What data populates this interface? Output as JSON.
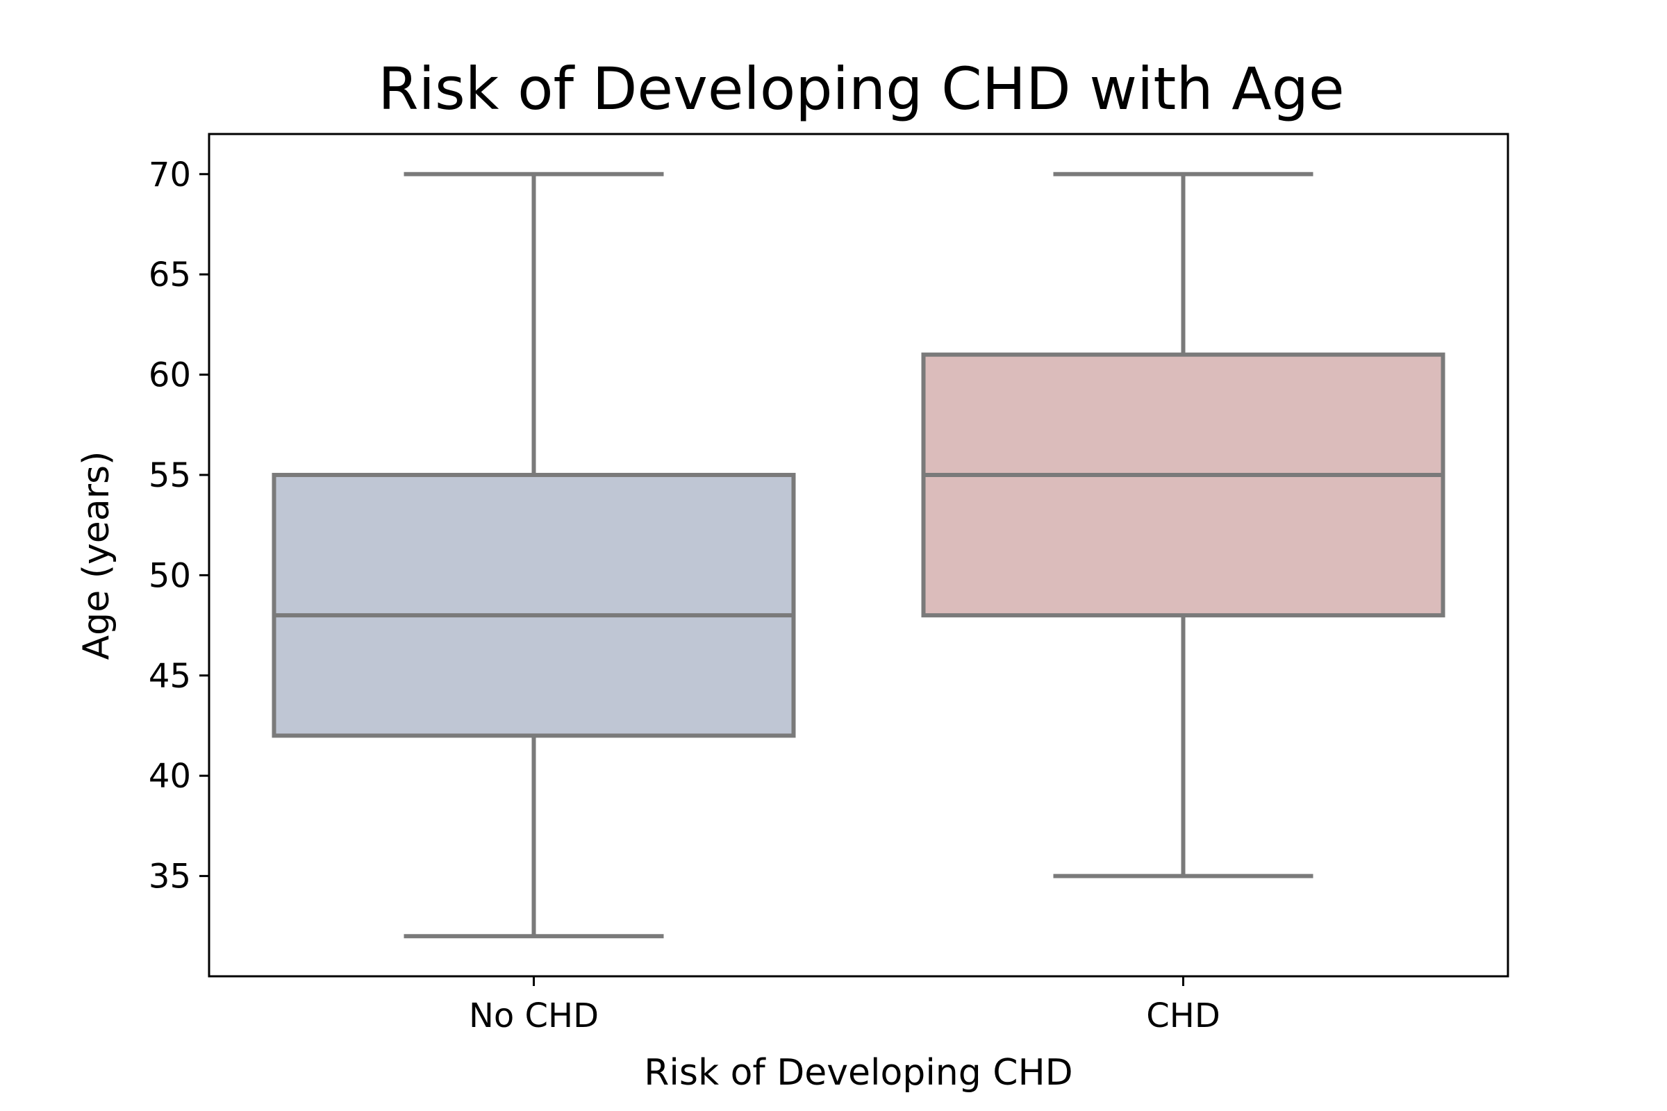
{
  "chart_data": {
    "type": "box",
    "title": "Risk of Developing CHD with Age",
    "xlabel": "Risk of Developing CHD",
    "ylabel": "Age (years)",
    "ylim": [
      30,
      72
    ],
    "yticks": [
      35,
      40,
      45,
      50,
      55,
      60,
      65,
      70
    ],
    "grid": false,
    "categories": [
      "No CHD",
      "CHD"
    ],
    "boxes": [
      {
        "category": "No CHD",
        "min": 32,
        "q1": 42,
        "median": 48,
        "q3": 55,
        "max": 70,
        "color": "#bfc6d4"
      },
      {
        "category": "CHD",
        "min": 35,
        "q1": 48,
        "median": 55,
        "q3": 61,
        "max": 70,
        "color": "#dbbcbb"
      }
    ],
    "line_color": "#7a7a7a"
  }
}
